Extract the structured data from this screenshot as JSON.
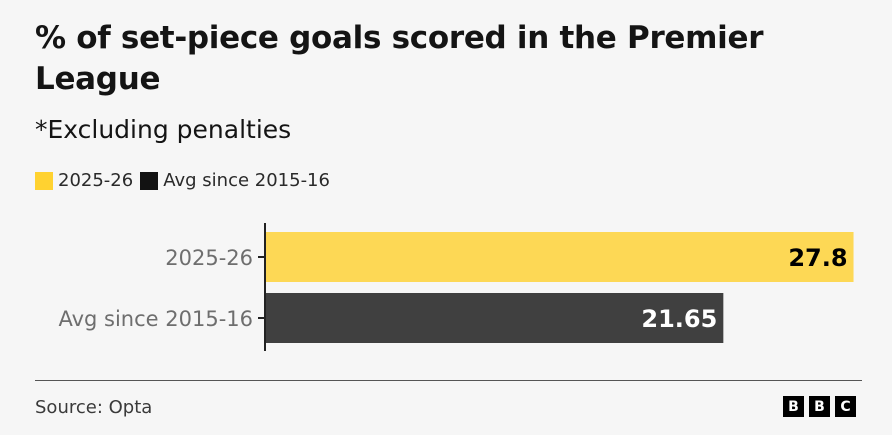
{
  "chart_data": {
    "type": "bar",
    "orientation": "horizontal",
    "title": "% of set-piece goals scored in the Premier League",
    "subtitle": "*Excluding penalties",
    "categories": [
      "2025-26",
      "Avg since 2015-16"
    ],
    "values": [
      27.8,
      21.65
    ],
    "value_labels": [
      "27.8",
      "21.65"
    ],
    "colors": [
      "#FDD855",
      "#404040"
    ],
    "legend": [
      {
        "label": "2025-26",
        "color": "#FFD230"
      },
      {
        "label": "Avg since 2015-16",
        "color": "#121212"
      }
    ],
    "legend_position": "top-left",
    "xlim": [
      0,
      28.2
    ],
    "grid": false
  },
  "footer": {
    "source": "Source: Opta",
    "logo": [
      "B",
      "B",
      "C"
    ]
  }
}
